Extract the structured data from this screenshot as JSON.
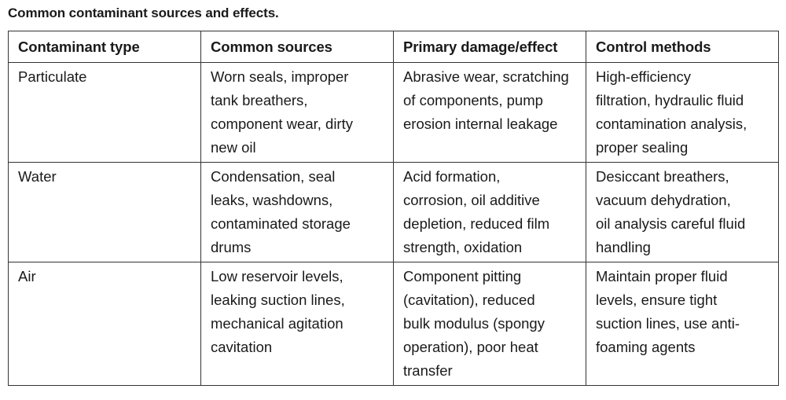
{
  "caption": "Common contaminant sources and effects.",
  "table": {
    "headers": [
      "Contaminant type",
      "Common sources",
      "Primary damage/effect",
      "Control methods"
    ],
    "rows": [
      {
        "type": "Particulate",
        "sources": [
          "Worn seals, improper",
          "tank breathers,",
          "component wear, dirty",
          "new oil"
        ],
        "effect": [
          "Abrasive wear, scratching",
          "of components, pump",
          "erosion internal leakage"
        ],
        "control": [
          "High-efficiency",
          "filtration, hydraulic fluid",
          "contamination analysis,",
          "proper sealing"
        ]
      },
      {
        "type": "Water",
        "sources": [
          "Condensation, seal",
          "leaks, washdowns,",
          "contaminated storage",
          "drums"
        ],
        "effect": [
          "Acid formation,",
          "corrosion, oil additive",
          "depletion, reduced film",
          "strength, oxidation"
        ],
        "control": [
          "Desiccant breathers,",
          "vacuum dehydration,",
          "oil analysis careful fluid",
          "handling"
        ]
      },
      {
        "type": "Air",
        "sources": [
          "Low reservoir levels,",
          "leaking suction lines,",
          "mechanical agitation",
          "cavitation"
        ],
        "effect": [
          "Component pitting",
          "(cavitation), reduced",
          "bulk modulus (spongy",
          "operation), poor heat",
          "transfer"
        ],
        "control": [
          "Maintain proper fluid",
          "levels, ensure tight",
          "suction lines, use anti-",
          "foaming agents"
        ]
      }
    ]
  }
}
